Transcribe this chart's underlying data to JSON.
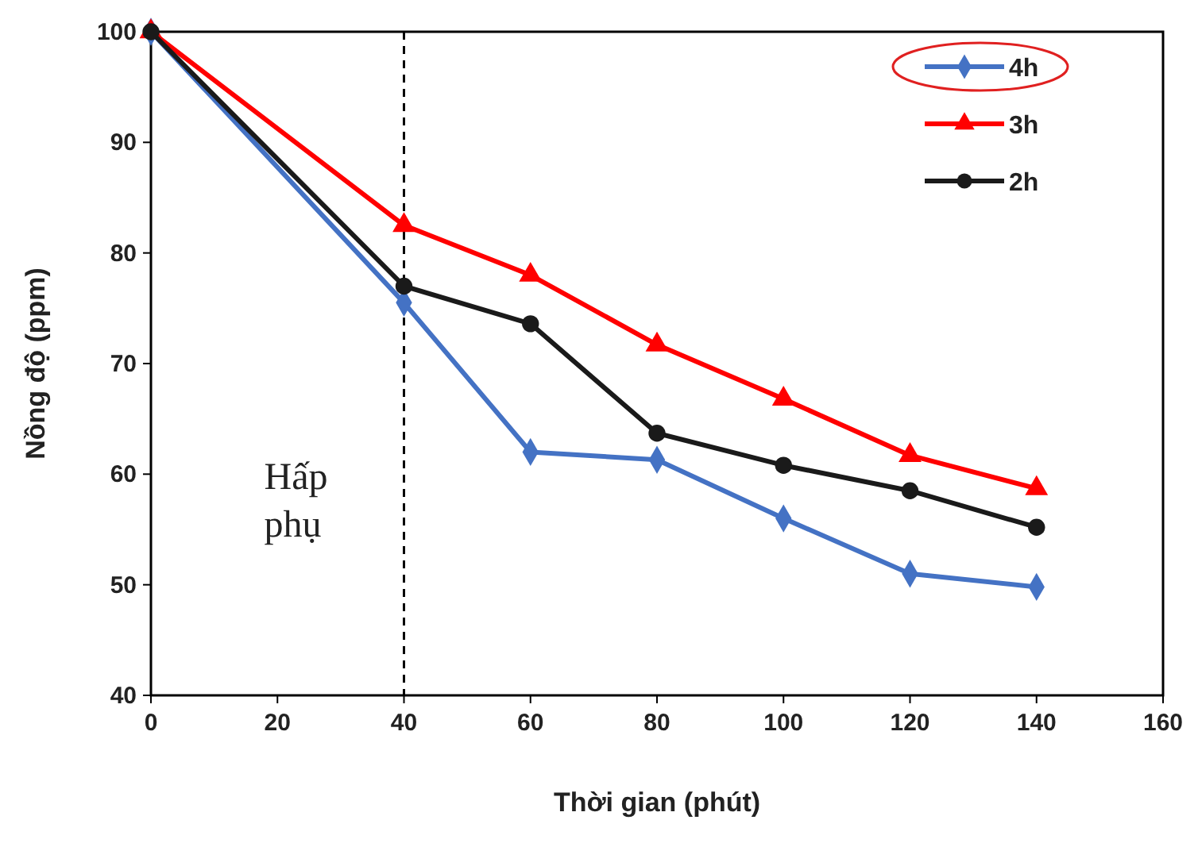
{
  "chart_data": {
    "type": "line",
    "xlabel": "Thời gian (phút)",
    "ylabel": "Nồng độ (ppm)",
    "x": [
      0,
      40,
      60,
      80,
      100,
      120,
      140
    ],
    "series": [
      {
        "name": "4h",
        "color": "#4472c4",
        "marker": "diamond",
        "values": [
          100,
          75.5,
          62,
          61.3,
          56,
          51,
          49.8
        ]
      },
      {
        "name": "3h",
        "color": "#ff0000",
        "marker": "triangle",
        "values": [
          100,
          82.5,
          78,
          71.7,
          66.8,
          61.7,
          58.7
        ]
      },
      {
        "name": "2h",
        "color": "#1a1a1a",
        "marker": "circle",
        "values": [
          100,
          77,
          73.6,
          63.7,
          60.8,
          58.5,
          55.2
        ]
      }
    ],
    "xlim": [
      0,
      160
    ],
    "xticks": [
      0,
      20,
      40,
      60,
      80,
      100,
      120,
      140,
      160
    ],
    "ylim": [
      40,
      100
    ],
    "yticks": [
      40,
      50,
      60,
      70,
      80,
      90,
      100
    ],
    "ref_lines": [
      {
        "axis": "x",
        "value": 40,
        "label": "Hấp phụ",
        "color": "#000000",
        "line_style": "dashed"
      }
    ],
    "grid": false,
    "legend": "top right",
    "line_style": "solid"
  }
}
